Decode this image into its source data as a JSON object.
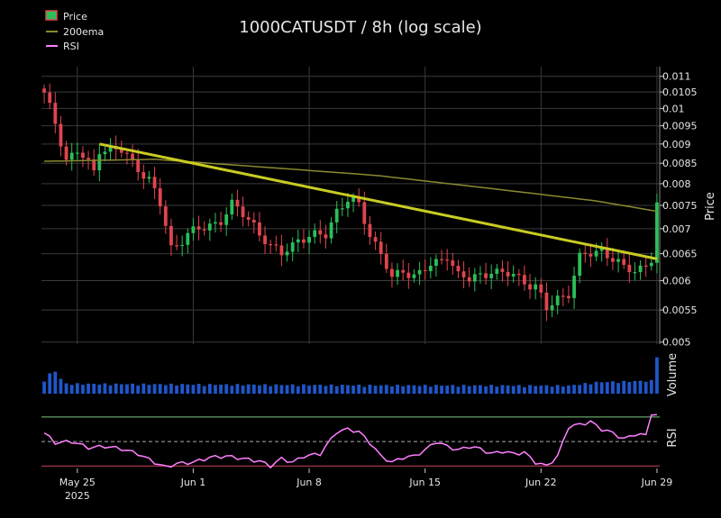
{
  "title": "1000CATUSDT / 8h (log scale)",
  "legend": {
    "placement": "top-left",
    "items": [
      {
        "label": "Price",
        "kind": "candle"
      },
      {
        "label": "200ema",
        "kind": "line",
        "color": "#8a8a30"
      },
      {
        "label": "RSI",
        "kind": "line",
        "color": "#ff80ff"
      }
    ]
  },
  "colors": {
    "background": "#000000",
    "up": "#2bbf58",
    "down": "#e0454e",
    "ema": "#8a8a30",
    "trendline": "#c9cc22",
    "rsi": "#ff80ff",
    "volume": "#1f56c9",
    "grid": "#3a3a3a",
    "rsi_upper": "#7ec87e",
    "rsi_lower": "#d14060"
  },
  "chart_data": {
    "type": "candlestick",
    "scale": "log",
    "grid": true,
    "price_panel": {
      "ylabel": "Price",
      "yticks": [
        "0.005",
        "0.0055",
        "0.006",
        "0.0065",
        "0.007",
        "0.0075",
        "0.008",
        "0.0085",
        "0.009",
        "0.0095",
        "0.01",
        "0.0105",
        "0.011"
      ],
      "ylim": [
        0.00497,
        0.0112
      ]
    },
    "volume_panel": {
      "ylabel": "Volume"
    },
    "rsi_panel": {
      "ylabel": "RSI",
      "upper": 70,
      "mid": 50,
      "lower": 30,
      "ylim": [
        28,
        78
      ]
    },
    "xticks": [
      {
        "label": "May 25",
        "sub": "2025",
        "bar": 6
      },
      {
        "label": "Jun 1",
        "bar": 27
      },
      {
        "label": "Jun 8",
        "bar": 48
      },
      {
        "label": "Jun 15",
        "bar": 69
      },
      {
        "label": "Jun 22",
        "bar": 90
      },
      {
        "label": "Jun 29",
        "bar": 111
      }
    ],
    "bars": 112,
    "key_closes": [
      [
        0,
        0.0104
      ],
      [
        2,
        0.0096
      ],
      [
        4,
        0.0086
      ],
      [
        6,
        0.0088
      ],
      [
        9,
        0.0083
      ],
      [
        10,
        0.0089
      ],
      [
        14,
        0.0088
      ],
      [
        17,
        0.0084
      ],
      [
        19,
        0.0081
      ],
      [
        21,
        0.0075
      ],
      [
        23,
        0.0066
      ],
      [
        26,
        0.0069
      ],
      [
        29,
        0.007
      ],
      [
        32,
        0.0072
      ],
      [
        34,
        0.0075
      ],
      [
        36,
        0.0073
      ],
      [
        38,
        0.0071
      ],
      [
        41,
        0.0066
      ],
      [
        43,
        0.0065
      ],
      [
        46,
        0.0068
      ],
      [
        48,
        0.0068
      ],
      [
        51,
        0.0069
      ],
      [
        53,
        0.0074
      ],
      [
        55,
        0.0076
      ],
      [
        57,
        0.0075
      ],
      [
        59,
        0.0069
      ],
      [
        61,
        0.0065
      ],
      [
        63,
        0.006
      ],
      [
        65,
        0.0062
      ],
      [
        67,
        0.0061
      ],
      [
        69,
        0.0062
      ],
      [
        71,
        0.0063
      ],
      [
        73,
        0.0065
      ],
      [
        75,
        0.0061
      ],
      [
        77,
        0.006
      ],
      [
        79,
        0.0061
      ],
      [
        81,
        0.0062
      ],
      [
        83,
        0.0061
      ],
      [
        85,
        0.0061
      ],
      [
        87,
        0.006
      ],
      [
        89,
        0.0059
      ],
      [
        91,
        0.0055
      ],
      [
        93,
        0.0057
      ],
      [
        95,
        0.0058
      ],
      [
        97,
        0.0064
      ],
      [
        99,
        0.0065
      ],
      [
        101,
        0.0066
      ],
      [
        103,
        0.0064
      ],
      [
        105,
        0.0062
      ],
      [
        107,
        0.0062
      ],
      [
        109,
        0.0063
      ],
      [
        110,
        0.0064
      ],
      [
        111,
        0.0075
      ]
    ],
    "ema_200": [
      [
        0,
        0.00855
      ],
      [
        20,
        0.0086
      ],
      [
        40,
        0.0084
      ],
      [
        60,
        0.0082
      ],
      [
        80,
        0.0079
      ],
      [
        100,
        0.0076
      ],
      [
        111,
        0.00737
      ]
    ],
    "trendline": [
      [
        10,
        0.009
      ],
      [
        111,
        0.0064
      ]
    ],
    "volume_key": [
      [
        0,
        0.32
      ],
      [
        1,
        0.48
      ],
      [
        2,
        0.55
      ],
      [
        3,
        0.35
      ],
      [
        4,
        0.22
      ],
      [
        30,
        0.2
      ],
      [
        60,
        0.18
      ],
      [
        95,
        0.17
      ],
      [
        100,
        0.26
      ],
      [
        110,
        0.3
      ],
      [
        111,
        0.95
      ]
    ],
    "rsi_key": [
      [
        0,
        57
      ],
      [
        2,
        49
      ],
      [
        5,
        50
      ],
      [
        8,
        45
      ],
      [
        11,
        46
      ],
      [
        14,
        44
      ],
      [
        17,
        40
      ],
      [
        20,
        33
      ],
      [
        22,
        29
      ],
      [
        24,
        32
      ],
      [
        27,
        33
      ],
      [
        30,
        37
      ],
      [
        33,
        38
      ],
      [
        36,
        36
      ],
      [
        39,
        34
      ],
      [
        41,
        30
      ],
      [
        43,
        36
      ],
      [
        45,
        33
      ],
      [
        47,
        38
      ],
      [
        50,
        40
      ],
      [
        53,
        58
      ],
      [
        55,
        60
      ],
      [
        57,
        58
      ],
      [
        59,
        49
      ],
      [
        61,
        38
      ],
      [
        63,
        33
      ],
      [
        65,
        37
      ],
      [
        67,
        38
      ],
      [
        69,
        43
      ],
      [
        71,
        50
      ],
      [
        73,
        46
      ],
      [
        75,
        43
      ],
      [
        77,
        46
      ],
      [
        79,
        44
      ],
      [
        81,
        40
      ],
      [
        83,
        42
      ],
      [
        85,
        40
      ],
      [
        87,
        41
      ],
      [
        89,
        33
      ],
      [
        91,
        30
      ],
      [
        93,
        38
      ],
      [
        95,
        62
      ],
      [
        97,
        64
      ],
      [
        99,
        66
      ],
      [
        101,
        60
      ],
      [
        103,
        57
      ],
      [
        105,
        52
      ],
      [
        107,
        56
      ],
      [
        109,
        55
      ],
      [
        110,
        73
      ],
      [
        111,
        71
      ]
    ]
  }
}
